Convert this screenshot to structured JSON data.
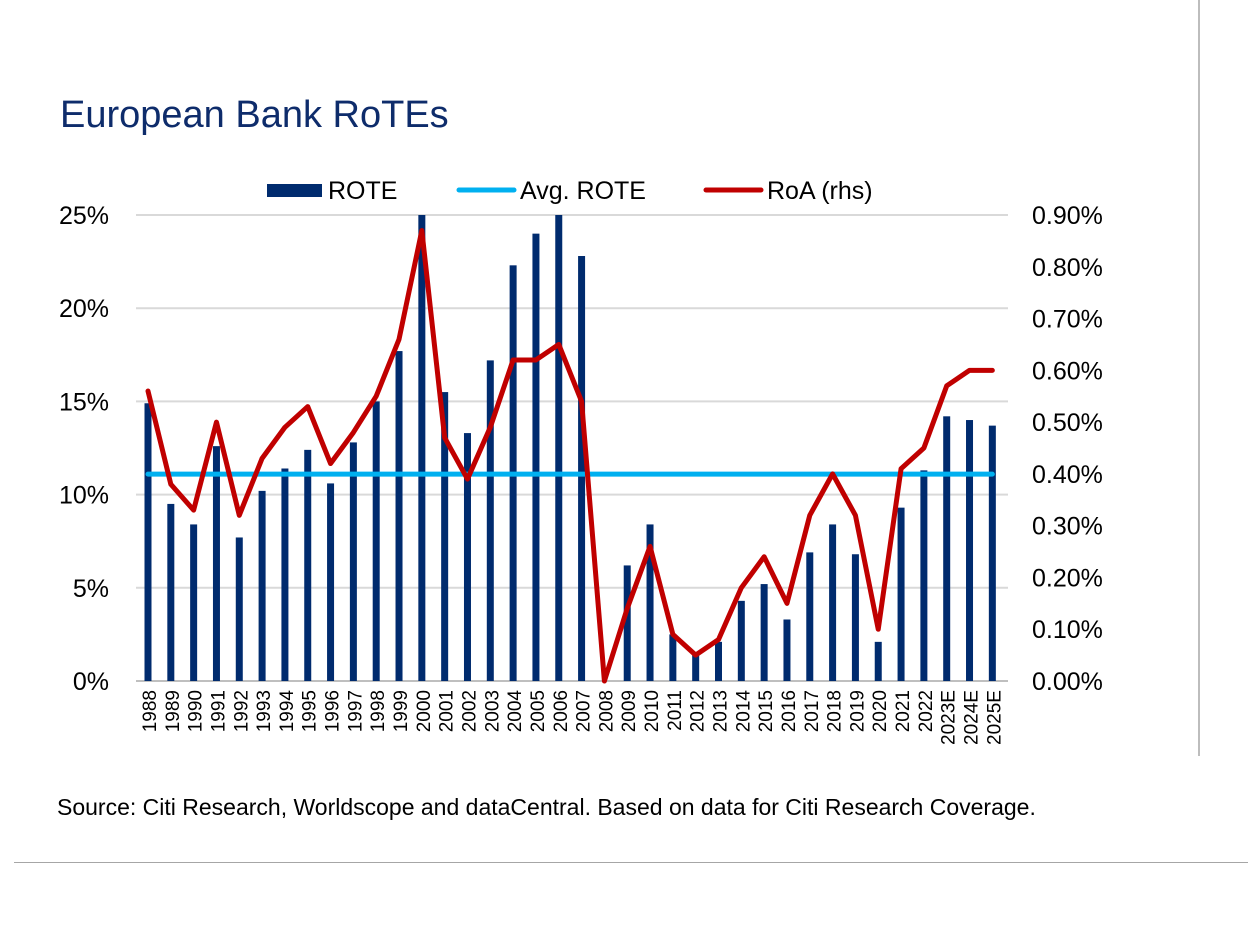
{
  "page": {
    "title": "European Bank RoTEs",
    "source": "Source: Citi Research, Worldscope and dataCentral. Based on data for Citi Research Coverage."
  },
  "colors": {
    "title": "#0e2c6b",
    "rote_bar": "#002b6e",
    "avg_line": "#00b0f0",
    "roa_line": "#c00000",
    "gridline": "#d9d9d9"
  },
  "chart_data": {
    "type": "bar",
    "title": "European Bank RoTEs",
    "categories": [
      "1988",
      "1989",
      "1990",
      "1991",
      "1992",
      "1993",
      "1994",
      "1995",
      "1996",
      "1997",
      "1998",
      "1999",
      "2000",
      "2001",
      "2002",
      "2003",
      "2004",
      "2005",
      "2006",
      "2007",
      "2008",
      "2009",
      "2010",
      "2011",
      "2012",
      "2013",
      "2014",
      "2015",
      "2016",
      "2017",
      "2018",
      "2019",
      "2020",
      "2021",
      "2022",
      "2023E",
      "2024E",
      "2025E"
    ],
    "legend_position": "top",
    "grid": true,
    "y_left": {
      "ylim": [
        0,
        25
      ],
      "ticks": [
        0,
        5,
        10,
        15,
        20,
        25
      ],
      "tick_labels": [
        "0%",
        "5%",
        "10%",
        "15%",
        "20%",
        "25%"
      ]
    },
    "y_right": {
      "ylim": [
        0,
        0.9
      ],
      "ticks": [
        0,
        0.1,
        0.2,
        0.3,
        0.4,
        0.5,
        0.6,
        0.7,
        0.8,
        0.9
      ],
      "tick_labels": [
        "0.00%",
        "0.10%",
        "0.20%",
        "0.30%",
        "0.40%",
        "0.50%",
        "0.60%",
        "0.70%",
        "0.80%",
        "0.90%"
      ]
    },
    "series": [
      {
        "name": "ROTE",
        "type": "bar",
        "axis": "left",
        "values": [
          14.9,
          9.5,
          8.4,
          12.6,
          7.7,
          10.2,
          11.4,
          12.4,
          10.6,
          12.8,
          15.0,
          17.7,
          25.0,
          15.5,
          13.3,
          17.2,
          22.3,
          24.0,
          25.0,
          22.8,
          0.0,
          6.2,
          8.4,
          2.5,
          1.5,
          2.1,
          4.3,
          5.2,
          3.3,
          6.9,
          8.4,
          6.8,
          2.1,
          9.3,
          11.3,
          14.2,
          14.0,
          13.7
        ]
      },
      {
        "name": "Avg. ROTE",
        "type": "line",
        "axis": "left",
        "values": [
          11.1,
          11.1,
          11.1,
          11.1,
          11.1,
          11.1,
          11.1,
          11.1,
          11.1,
          11.1,
          11.1,
          11.1,
          11.1,
          11.1,
          11.1,
          11.1,
          11.1,
          11.1,
          11.1,
          11.1,
          11.1,
          11.1,
          11.1,
          11.1,
          11.1,
          11.1,
          11.1,
          11.1,
          11.1,
          11.1,
          11.1,
          11.1,
          11.1,
          11.1,
          11.1,
          11.1,
          11.1,
          11.1
        ]
      },
      {
        "name": "RoA (rhs)",
        "type": "line",
        "axis": "right",
        "values": [
          0.56,
          0.38,
          0.33,
          0.5,
          0.32,
          0.43,
          0.49,
          0.53,
          0.42,
          0.48,
          0.55,
          0.66,
          0.87,
          0.47,
          0.39,
          0.49,
          0.62,
          0.62,
          0.65,
          0.54,
          0.0,
          0.14,
          0.26,
          0.09,
          0.05,
          0.08,
          0.18,
          0.24,
          0.15,
          0.32,
          0.4,
          0.32,
          0.1,
          0.41,
          0.45,
          0.57,
          0.6,
          0.6
        ]
      }
    ]
  }
}
